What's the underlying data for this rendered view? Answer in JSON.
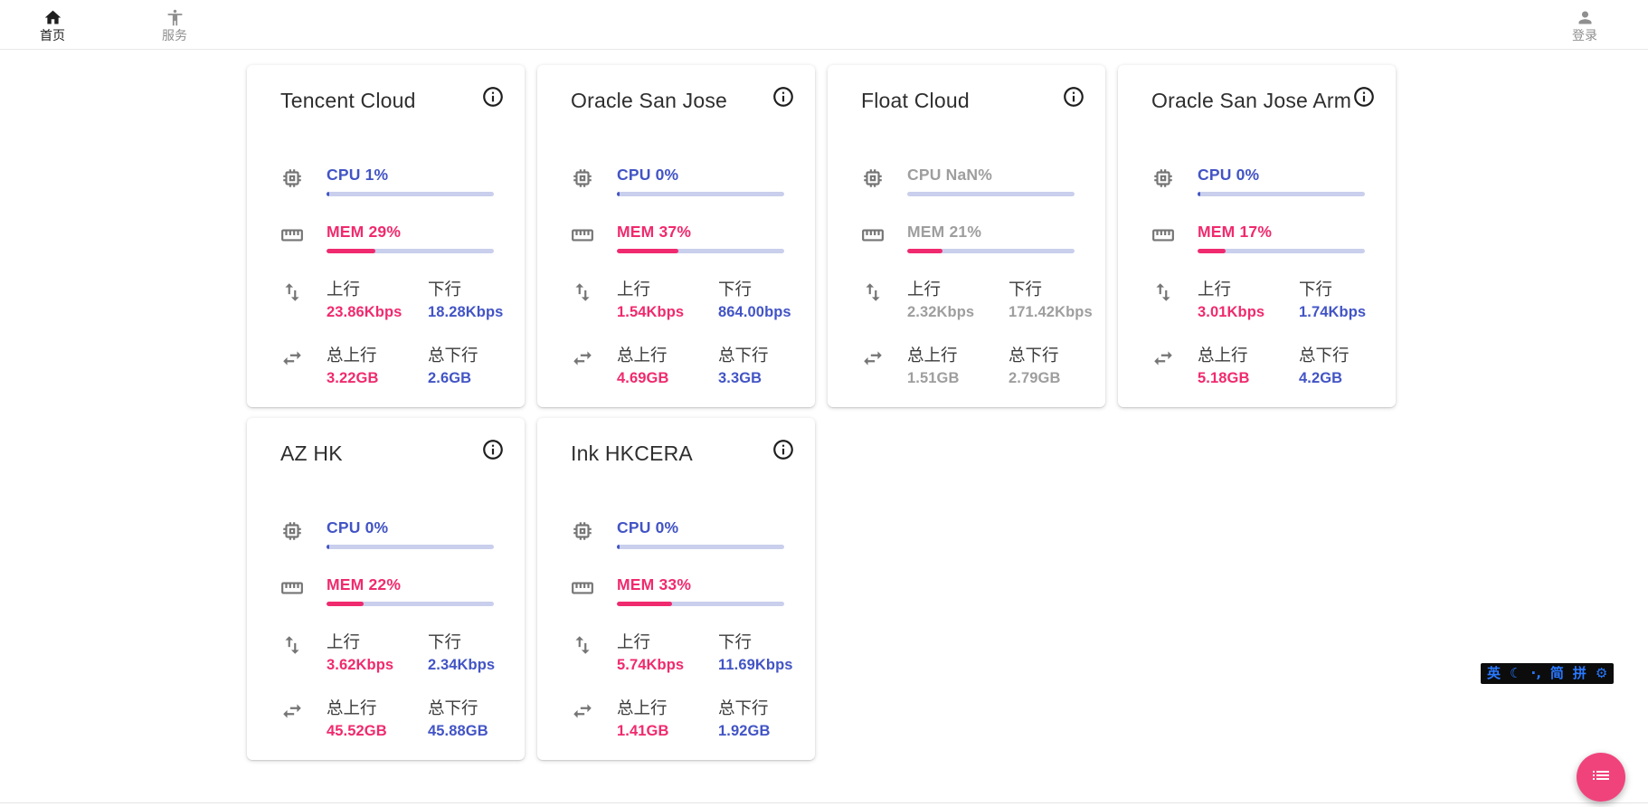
{
  "nav": {
    "home": {
      "label": "首页"
    },
    "services": {
      "label": "服务"
    },
    "login": {
      "label": "登录"
    }
  },
  "labels": {
    "up": "上行",
    "down": "下行",
    "total_up": "总上行",
    "total_down": "总下行"
  },
  "theme": {
    "accent_blue": "#4254C5",
    "accent_pink": "#F02A6E",
    "bar_track": "#C9CFEC",
    "icon_gray": "#757575",
    "muted_gray": "#9E9E9E",
    "fab_pink": "#F0437C",
    "ime_blue": "#2979FF"
  },
  "cards": [
    {
      "title": "Tencent Cloud",
      "cpu_label": "CPU 1%",
      "cpu_pct": 1,
      "mem_label": "MEM 29%",
      "mem_pct": 29,
      "up_value": "23.86Kbps",
      "down_value": "18.28Kbps",
      "total_up_value": "3.22GB",
      "total_down_value": "2.6GB",
      "offline": false
    },
    {
      "title": "Oracle San Jose",
      "cpu_label": "CPU 0%",
      "cpu_pct": 0,
      "mem_label": "MEM 37%",
      "mem_pct": 37,
      "up_value": "1.54Kbps",
      "down_value": "864.00bps",
      "total_up_value": "4.69GB",
      "total_down_value": "3.3GB",
      "offline": false
    },
    {
      "title": "Float Cloud",
      "cpu_label": "CPU NaN%",
      "cpu_pct": null,
      "mem_label": "MEM 21%",
      "mem_pct": 21,
      "up_value": "2.32Kbps",
      "down_value": "171.42Kbps",
      "total_up_value": "1.51GB",
      "total_down_value": "2.79GB",
      "offline": true
    },
    {
      "title": "Oracle San Jose Arm",
      "cpu_label": "CPU 0%",
      "cpu_pct": 0,
      "mem_label": "MEM 17%",
      "mem_pct": 17,
      "up_value": "3.01Kbps",
      "down_value": "1.74Kbps",
      "total_up_value": "5.18GB",
      "total_down_value": "4.2GB",
      "offline": false
    },
    {
      "title": "AZ HK",
      "cpu_label": "CPU 0%",
      "cpu_pct": 0,
      "mem_label": "MEM 22%",
      "mem_pct": 22,
      "up_value": "3.62Kbps",
      "down_value": "2.34Kbps",
      "total_up_value": "45.52GB",
      "total_down_value": "45.88GB",
      "offline": false
    },
    {
      "title": "Ink HKCERA",
      "cpu_label": "CPU 0%",
      "cpu_pct": 0,
      "mem_label": "MEM 33%",
      "mem_pct": 33,
      "up_value": "5.74Kbps",
      "down_value": "11.69Kbps",
      "total_up_value": "1.41GB",
      "total_down_value": "1.92GB",
      "offline": false
    }
  ],
  "ime": {
    "english": "英",
    "moon": "☾",
    "punctuation": "·‚",
    "simplified": "简",
    "pinyin": "拼",
    "gear": "⚙"
  }
}
